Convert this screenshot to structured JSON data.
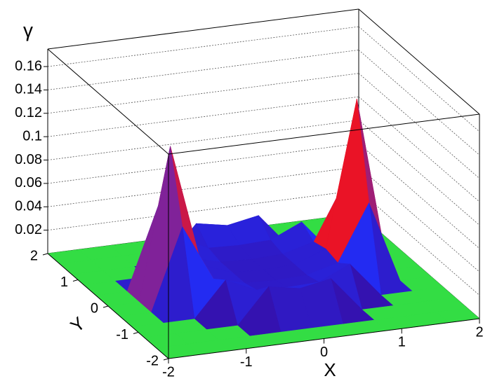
{
  "chart_data": {
    "type": "surface",
    "xlabel": "X",
    "ylabel": "Y",
    "zlabel": "γ",
    "x": [
      -2,
      -1.6,
      -1.2,
      -0.8,
      -0.4,
      0,
      0.4,
      0.8,
      1.2,
      1.6,
      2
    ],
    "y": [
      -2,
      -1.6,
      -1.2,
      -0.8,
      -0.4,
      0,
      0.4,
      0.8,
      1.2,
      1.6,
      2
    ],
    "z": [
      [
        0,
        0,
        0,
        0,
        0,
        0,
        0,
        0,
        0,
        0,
        0
      ],
      [
        0,
        0,
        0,
        0,
        0,
        0,
        0,
        0,
        0,
        0,
        0
      ],
      [
        0,
        0,
        0,
        0,
        0.03,
        0.025,
        0.03,
        0,
        0,
        0,
        0
      ],
      [
        0,
        0,
        0,
        0.03,
        0.018,
        0.017,
        0.018,
        0.03,
        0,
        0,
        0
      ],
      [
        0,
        0,
        0.07,
        0.022,
        0.015,
        0.014,
        0.015,
        0.022,
        0.07,
        0,
        0
      ],
      [
        0,
        0,
        0.13,
        0.025,
        0.015,
        0.014,
        0.015,
        0.025,
        0.15,
        0,
        0
      ],
      [
        0,
        0,
        0.07,
        0.022,
        0.015,
        0.014,
        0.015,
        0.022,
        0.07,
        0,
        0
      ],
      [
        0,
        0,
        0,
        0.03,
        0.018,
        0.017,
        0.018,
        0.03,
        0,
        0,
        0
      ],
      [
        0,
        0,
        0,
        0,
        0.03,
        0.025,
        0.03,
        0,
        0,
        0,
        0
      ],
      [
        0,
        0,
        0,
        0,
        0,
        0,
        0,
        0,
        0,
        0,
        0
      ],
      [
        0,
        0,
        0,
        0,
        0,
        0,
        0,
        0,
        0,
        0,
        0
      ]
    ],
    "xlim": [
      -2,
      2
    ],
    "ylim": [
      -2,
      2
    ],
    "zlim": [
      0,
      0.175
    ],
    "xticks": [
      -2,
      -1,
      0,
      1,
      2
    ],
    "yticks": [
      -2,
      -1,
      0,
      1,
      2
    ],
    "zticks": [
      0.02,
      0.04,
      0.06,
      0.08,
      0.1,
      0.12,
      0.14,
      0.16
    ],
    "grid": true,
    "floor_color": "#33dd44",
    "palette": [
      "#3a0a9a",
      "#2030ff",
      "#ff1010",
      "#ffaa00",
      "#ffff30",
      "#ff40ff"
    ]
  }
}
